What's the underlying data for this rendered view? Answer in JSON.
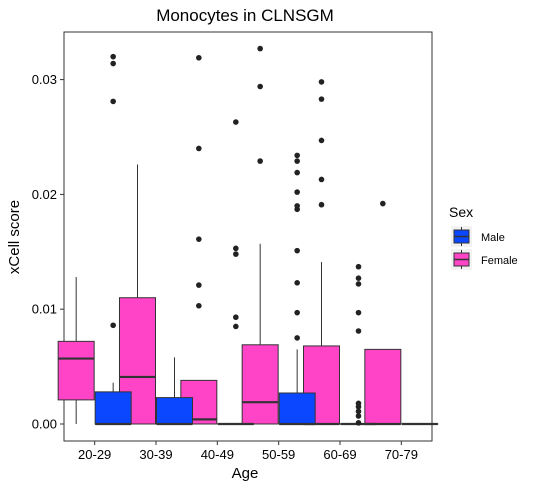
{
  "chart_data": {
    "type": "boxplot",
    "title": "Monocytes in CLNSGM",
    "xlabel": "Age",
    "ylabel": "xCell score",
    "ylim": [
      -0.0015,
      0.0335
    ],
    "yticks": [
      0.0,
      0.01,
      0.02,
      0.03
    ],
    "ytick_labels": [
      "0.00",
      "0.01",
      "0.02",
      "0.03"
    ],
    "categories": [
      "20-29",
      "30-39",
      "40-49",
      "50-59",
      "60-69",
      "70-79"
    ],
    "grid": false,
    "legend": {
      "title": "Sex",
      "position": "right",
      "entries": [
        {
          "name": "Male",
          "color": "#0a47ff"
        },
        {
          "name": "Female",
          "color": "#ff44c8"
        }
      ]
    },
    "series": [
      {
        "name": "Female",
        "color": "#ff44c8",
        "boxes": [
          {
            "category": "20-29",
            "min": 0.0,
            "q1": 0.0021,
            "median": 0.0057,
            "q3": 0.0072,
            "max": 0.0128,
            "outliers": []
          },
          {
            "category": "30-39",
            "min": 0.0,
            "q1": 0.0,
            "median": 0.0041,
            "q3": 0.011,
            "max": 0.0226,
            "outliers": []
          },
          {
            "category": "40-49",
            "min": 0.0,
            "q1": 0.0,
            "median": 0.0004,
            "q3": 0.0038,
            "max": 0.0038,
            "outliers": [
              0.0103,
              0.0121,
              0.0161,
              0.024,
              0.0319
            ]
          },
          {
            "category": "50-59",
            "min": 0.0,
            "q1": 0.0,
            "median": 0.0019,
            "q3": 0.0069,
            "max": 0.0157,
            "outliers": [
              0.0229,
              0.0294,
              0.0327
            ]
          },
          {
            "category": "60-69",
            "min": 0.0,
            "q1": 0.0,
            "median": 0.0,
            "q3": 0.0068,
            "max": 0.0141,
            "outliers": [
              0.0191,
              0.0213,
              0.0247,
              0.0283,
              0.0298
            ]
          },
          {
            "category": "70-79",
            "min": 0.0,
            "q1": 0.0,
            "median": 0.0,
            "q3": 0.0065,
            "max": 0.0065,
            "outliers": [
              0.0192
            ]
          }
        ]
      },
      {
        "name": "Male",
        "color": "#0a47ff",
        "boxes": [
          {
            "category": "20-29",
            "min": 0.0,
            "q1": 0.0,
            "median": 0.0,
            "q3": 0.0028,
            "max": 0.0036,
            "outliers": [
              0.0086,
              0.0281,
              0.0314,
              0.032
            ]
          },
          {
            "category": "30-39",
            "min": 0.0,
            "q1": 0.0,
            "median": 0.0,
            "q3": 0.0023,
            "max": 0.0058,
            "outliers": []
          },
          {
            "category": "40-49",
            "min": 0.0,
            "q1": 0.0,
            "median": 0.0,
            "q3": 0.0,
            "max": 0.0,
            "outliers": [
              0.0085,
              0.0093,
              0.0148,
              0.0153,
              0.0263
            ]
          },
          {
            "category": "50-59",
            "min": 0.0,
            "q1": 0.0,
            "median": 0.0,
            "q3": 0.0027,
            "max": 0.0065,
            "outliers": [
              0.0075,
              0.0097,
              0.0123,
              0.0151,
              0.0187,
              0.019,
              0.0202,
              0.0219,
              0.0229,
              0.0234
            ]
          },
          {
            "category": "60-69",
            "min": 0.0,
            "q1": 0.0,
            "median": 0.0,
            "q3": 0.0,
            "max": 0.0,
            "outliers": [
              0.0001,
              0.0007,
              0.0011,
              0.0015,
              0.0018,
              0.0081,
              0.0097,
              0.0122,
              0.0127,
              0.0137
            ]
          },
          {
            "category": "70-79",
            "min": 0.0,
            "q1": 0.0,
            "median": 0.0,
            "q3": 0.0,
            "max": 0.0,
            "outliers": []
          }
        ]
      }
    ]
  }
}
